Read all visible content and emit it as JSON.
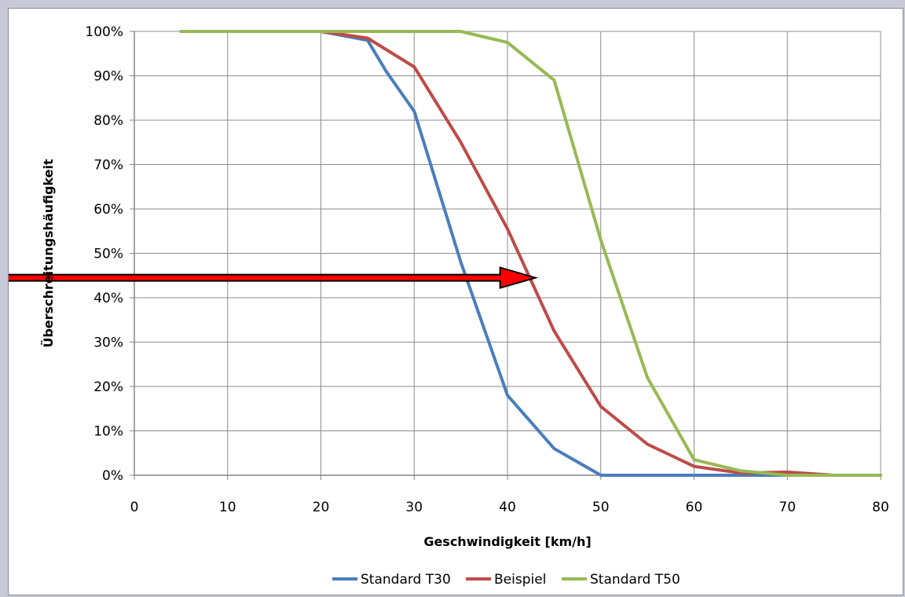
{
  "chart_data": {
    "type": "line",
    "title": "",
    "xlabel": "Geschwindigkeit [km/h]",
    "ylabel": "Überschreitungshäufigkeit",
    "xlim": [
      0,
      80
    ],
    "ylim": [
      0,
      100
    ],
    "x_ticks": [
      0,
      10,
      20,
      30,
      40,
      50,
      60,
      70,
      80
    ],
    "x_tick_labels": [
      "0",
      "10",
      "20",
      "30",
      "40",
      "50",
      "60",
      "70",
      "80"
    ],
    "y_ticks": [
      0,
      10,
      20,
      30,
      40,
      50,
      60,
      70,
      80,
      90,
      100
    ],
    "y_tick_labels": [
      "0%",
      "10%",
      "20%",
      "30%",
      "40%",
      "50%",
      "60%",
      "70%",
      "80%",
      "90%",
      "100%"
    ],
    "grid": true,
    "legend_position": "bottom",
    "series": [
      {
        "name": "Standard T30",
        "color": "#4a7ebb",
        "points": [
          [
            5,
            100
          ],
          [
            20,
            100
          ],
          [
            25,
            98
          ],
          [
            27,
            91
          ],
          [
            30,
            82
          ],
          [
            35,
            48
          ],
          [
            40,
            18
          ],
          [
            45,
            6
          ],
          [
            50,
            0
          ],
          [
            55,
            0
          ],
          [
            60,
            0
          ],
          [
            65,
            0
          ],
          [
            70,
            0
          ],
          [
            75,
            0
          ],
          [
            80,
            0
          ]
        ]
      },
      {
        "name": "Beispiel",
        "color": "#be4b48",
        "points": [
          [
            5,
            100
          ],
          [
            20,
            100
          ],
          [
            25,
            98.5
          ],
          [
            30,
            92
          ],
          [
            35,
            75
          ],
          [
            40,
            55.5
          ],
          [
            45,
            32.5
          ],
          [
            50,
            15.5
          ],
          [
            55,
            7
          ],
          [
            60,
            2
          ],
          [
            65,
            0.5
          ],
          [
            70,
            0.7
          ],
          [
            75,
            0
          ],
          [
            80,
            0
          ]
        ]
      },
      {
        "name": "Standard T50",
        "color": "#98b954",
        "points": [
          [
            5,
            100
          ],
          [
            20,
            100
          ],
          [
            25,
            100
          ],
          [
            30,
            100
          ],
          [
            35,
            100
          ],
          [
            40,
            97.5
          ],
          [
            45,
            89
          ],
          [
            50,
            53
          ],
          [
            55,
            22
          ],
          [
            60,
            3.5
          ],
          [
            65,
            1
          ],
          [
            70,
            0
          ],
          [
            75,
            0
          ],
          [
            80,
            0
          ]
        ]
      }
    ],
    "annotations": [
      {
        "type": "arrow",
        "from": [
          -14,
          44.5
        ],
        "to": [
          43,
          44.5
        ],
        "fill": "#ff0000",
        "stroke": "#000000"
      }
    ]
  }
}
